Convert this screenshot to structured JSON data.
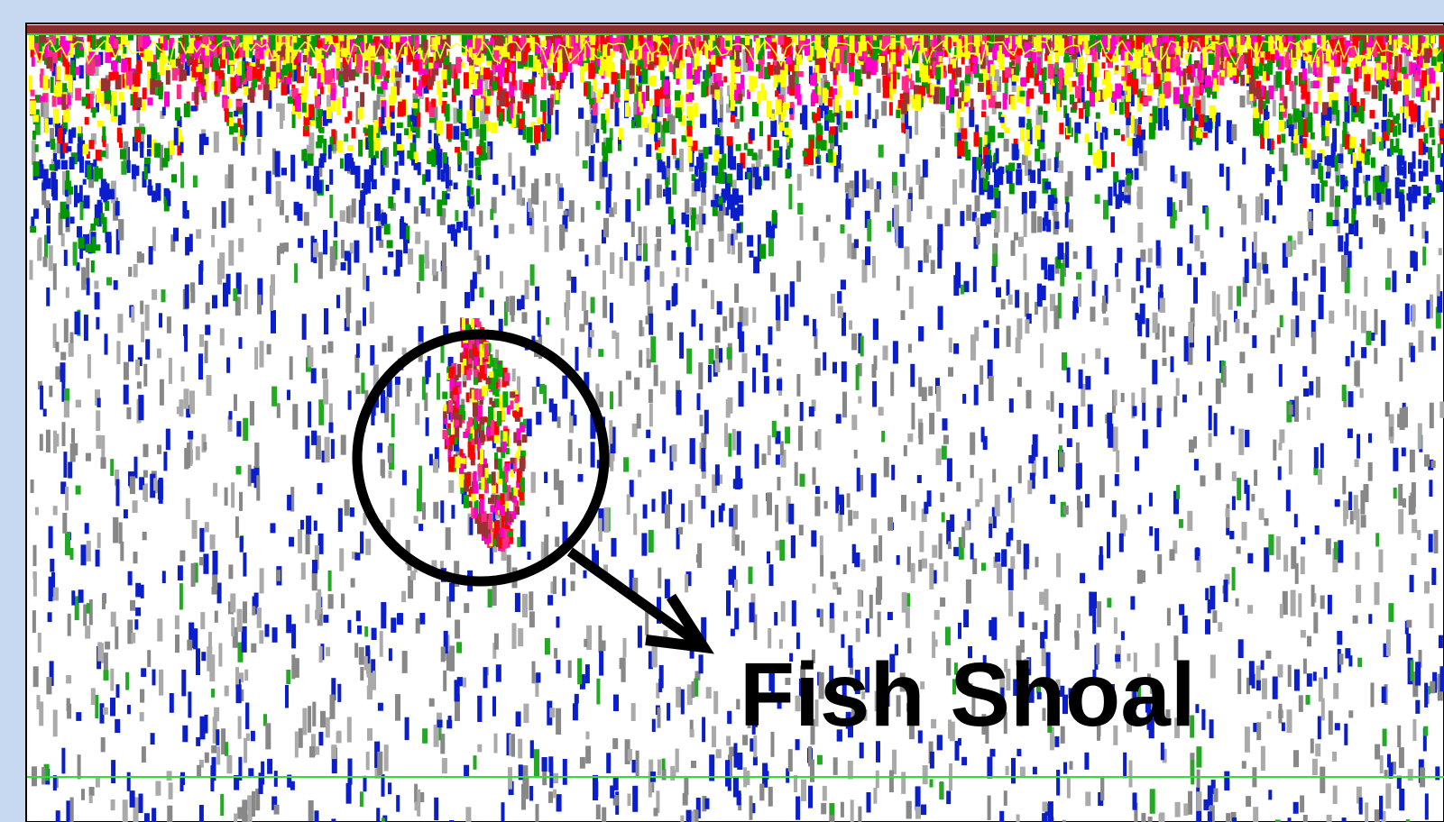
{
  "annotation": {
    "label": "Fish Shoal"
  }
}
